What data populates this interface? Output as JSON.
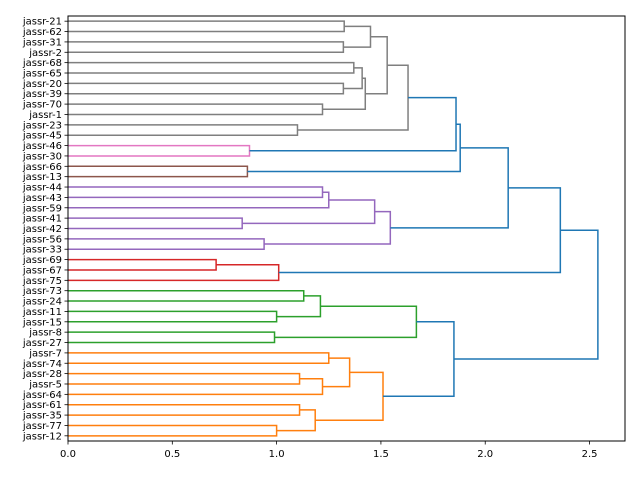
{
  "chart_data": {
    "type": "dendrogram",
    "orientation": "horizontal",
    "title": "",
    "xlabel": "",
    "ylabel": "",
    "xlim": [
      0,
      2.67
    ],
    "xticks": [
      "0.0",
      "0.5",
      "1.0",
      "1.5",
      "2.0",
      "2.5"
    ],
    "xtick_values": [
      0,
      0.5,
      1.0,
      1.5,
      2.0,
      2.5
    ],
    "colors": {
      "blue": "#1f77b4",
      "grey": "#7f7f7f",
      "pink": "#e377c2",
      "brown": "#8c564b",
      "purple": "#9467bd",
      "red": "#d62728",
      "green": "#2ca02c",
      "orange": "#ff7f0e"
    },
    "tree": {
      "h": 2.54,
      "c": "blue",
      "k": [
        {
          "h": 2.36,
          "c": "blue",
          "k": [
            {
              "h": 2.11,
              "c": "blue",
              "k": [
                {
                  "h": 1.88,
                  "c": "blue",
                  "k": [
                    {
                      "h": 1.86,
                      "c": "blue",
                      "k": [
                        {
                          "h": 1.63,
                          "c": "grey",
                          "k": [
                            {
                              "h": 1.53,
                              "c": "grey",
                              "k": [
                                {
                                  "h": 1.45,
                                  "c": "grey",
                                  "k": [
                                    {
                                      "h": 1.324,
                                      "c": "grey",
                                      "k": [
                                        "jassr-21",
                                        "jassr-62"
                                      ]
                                    },
                                    {
                                      "h": 1.32,
                                      "c": "grey",
                                      "k": [
                                        "jassr-31",
                                        "jassr-2"
                                      ]
                                    }
                                  ]
                                },
                                {
                                  "h": 1.425,
                                  "c": "grey",
                                  "k": [
                                    {
                                      "h": 1.41,
                                      "c": "grey",
                                      "k": [
                                        {
                                          "h": 1.37,
                                          "c": "grey",
                                          "k": [
                                            "jassr-68",
                                            "jassr-65"
                                          ]
                                        },
                                        {
                                          "h": 1.32,
                                          "c": "grey",
                                          "k": [
                                            "jassr-20",
                                            "jassr-39"
                                          ]
                                        }
                                      ]
                                    },
                                    {
                                      "h": 1.22,
                                      "c": "grey",
                                      "k": [
                                        "jassr-70",
                                        "jassr-1"
                                      ]
                                    }
                                  ]
                                }
                              ]
                            },
                            {
                              "h": 1.1,
                              "c": "grey",
                              "k": [
                                "jassr-23",
                                "jassr-45"
                              ]
                            }
                          ]
                        },
                        {
                          "h": 0.87,
                          "c": "pink",
                          "k": [
                            "jassr-46",
                            "jassr-30"
                          ]
                        }
                      ]
                    },
                    {
                      "h": 0.86,
                      "c": "brown",
                      "k": [
                        "jassr-66",
                        "jassr-13"
                      ]
                    }
                  ]
                },
                {
                  "h": 1.545,
                  "c": "purple",
                  "k": [
                    {
                      "h": 1.47,
                      "c": "purple",
                      "k": [
                        {
                          "h": 1.25,
                          "c": "purple",
                          "k": [
                            {
                              "h": 1.22,
                              "c": "purple",
                              "k": [
                                "jassr-44",
                                "jassr-43"
                              ]
                            },
                            "jassr-59"
                          ]
                        },
                        {
                          "h": 0.835,
                          "c": "purple",
                          "k": [
                            "jassr-41",
                            "jassr-42"
                          ]
                        }
                      ]
                    },
                    {
                      "h": 0.94,
                      "c": "purple",
                      "k": [
                        "jassr-56",
                        "jassr-33"
                      ]
                    }
                  ]
                }
              ]
            },
            {
              "h": 1.01,
              "c": "red",
              "k": [
                {
                  "h": 0.71,
                  "c": "red",
                  "k": [
                    "jassr-69",
                    "jassr-67"
                  ]
                },
                "jassr-75"
              ]
            }
          ]
        },
        {
          "h": 1.85,
          "c": "blue",
          "k": [
            {
              "h": 1.67,
              "c": "green",
              "k": [
                {
                  "h": 1.21,
                  "c": "green",
                  "k": [
                    {
                      "h": 1.13,
                      "c": "green",
                      "k": [
                        "jassr-73",
                        "jassr-24"
                      ]
                    },
                    {
                      "h": 1.0,
                      "c": "green",
                      "k": [
                        "jassr-11",
                        "jassr-15"
                      ]
                    }
                  ]
                },
                {
                  "h": 0.99,
                  "c": "green",
                  "k": [
                    "jassr-8",
                    "jassr-27"
                  ]
                }
              ]
            },
            {
              "h": 1.51,
              "c": "orange",
              "k": [
                {
                  "h": 1.35,
                  "c": "orange",
                  "k": [
                    {
                      "h": 1.25,
                      "c": "orange",
                      "k": [
                        "jassr-7",
                        "jassr-74"
                      ]
                    },
                    {
                      "h": 1.22,
                      "c": "orange",
                      "k": [
                        {
                          "h": 1.11,
                          "c": "orange",
                          "k": [
                            "jassr-28",
                            "jassr-5"
                          ]
                        },
                        "jassr-64"
                      ]
                    }
                  ]
                },
                {
                  "h": 1.185,
                  "c": "orange",
                  "k": [
                    {
                      "h": 1.11,
                      "c": "orange",
                      "k": [
                        "jassr-61",
                        "jassr-35"
                      ]
                    },
                    {
                      "h": 1.0,
                      "c": "orange",
                      "k": [
                        "jassr-77",
                        "jassr-12"
                      ]
                    }
                  ]
                }
              ]
            }
          ]
        }
      ]
    }
  }
}
